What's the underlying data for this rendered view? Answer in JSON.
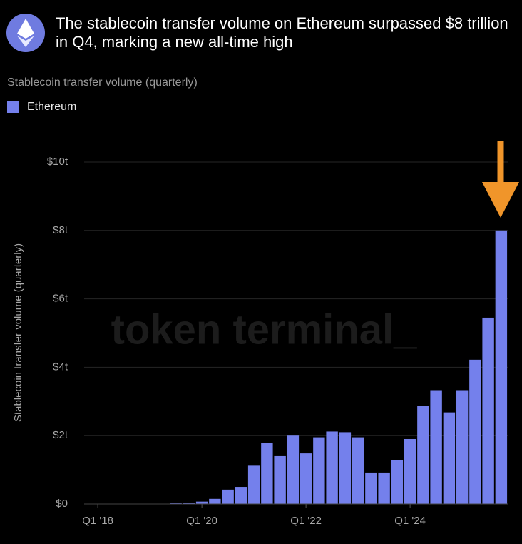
{
  "chart_data": {
    "type": "bar",
    "title": "The stablecoin transfer volume on Ethereum surpassed $8 trillion in Q4, marking a new all-time high",
    "subtitle": "Stablecoin transfer volume (quarterly)",
    "ylabel": "Stablecoin transfer volume (quarterly)",
    "watermark": "token terminal_",
    "categories": [
      "Q1 '18",
      null,
      null,
      null,
      null,
      null,
      null,
      null,
      "Q1 '20",
      null,
      null,
      null,
      null,
      null,
      null,
      null,
      "Q1 '22",
      null,
      null,
      null,
      null,
      null,
      null,
      null,
      "Q1 '24",
      null,
      null,
      null,
      null,
      null,
      null,
      null
    ],
    "series": [
      {
        "name": "Ethereum",
        "color": "#7480ec",
        "values": [
          0.005,
          0.005,
          0.005,
          0.005,
          0.005,
          0.005,
          0.02,
          0.04,
          0.07,
          0.15,
          0.42,
          0.5,
          1.12,
          1.78,
          1.4,
          2.0,
          1.48,
          1.95,
          2.12,
          2.1,
          1.95,
          0.92,
          0.92,
          1.28,
          1.9,
          2.88,
          3.33,
          2.68,
          3.33,
          4.22,
          5.45,
          8.0
        ]
      }
    ],
    "ylim": [
      0,
      10
    ],
    "yticks": [
      {
        "value": 0,
        "label": "$0"
      },
      {
        "value": 2,
        "label": "$2t"
      },
      {
        "value": 4,
        "label": "$4t"
      },
      {
        "value": 6,
        "label": "$6t"
      },
      {
        "value": 8,
        "label": "$8t"
      },
      {
        "value": 10,
        "label": "$10t"
      }
    ],
    "grid": true
  }
}
